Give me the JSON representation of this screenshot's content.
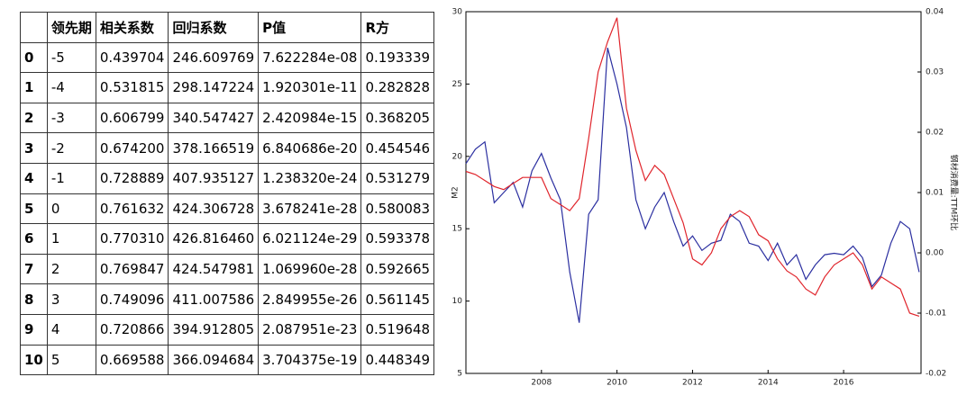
{
  "table": {
    "columns": [
      "",
      "领先期",
      "相关系数",
      "回归系数",
      "P值",
      "R方"
    ],
    "rows": [
      [
        "0",
        "-5",
        "0.439704",
        "246.609769",
        "7.622284e-08",
        "0.193339"
      ],
      [
        "1",
        "-4",
        "0.531815",
        "298.147224",
        "1.920301e-11",
        "0.282828"
      ],
      [
        "2",
        "-3",
        "0.606799",
        "340.547427",
        "2.420984e-15",
        "0.368205"
      ],
      [
        "3",
        "-2",
        "0.674200",
        "378.166519",
        "6.840686e-20",
        "0.454546"
      ],
      [
        "4",
        "-1",
        "0.728889",
        "407.935127",
        "1.238320e-24",
        "0.531279"
      ],
      [
        "5",
        "0",
        "0.761632",
        "424.306728",
        "3.678241e-28",
        "0.580083"
      ],
      [
        "6",
        "1",
        "0.770310",
        "426.816460",
        "6.021124e-29",
        "0.593378"
      ],
      [
        "7",
        "2",
        "0.769847",
        "424.547981",
        "1.069960e-28",
        "0.592665"
      ],
      [
        "8",
        "3",
        "0.749096",
        "411.007586",
        "2.849955e-26",
        "0.561145"
      ],
      [
        "9",
        "4",
        "0.720866",
        "394.912805",
        "2.087951e-23",
        "0.519648"
      ],
      [
        "10",
        "5",
        "0.669588",
        "366.094684",
        "3.704375e-19",
        "0.448349"
      ]
    ]
  },
  "chart_data": {
    "type": "line",
    "ylabel": "M2",
    "y2label": "钢材消费量:TTM环比",
    "x": [
      2006.0,
      2006.25,
      2006.5,
      2006.75,
      2007.0,
      2007.25,
      2007.5,
      2007.75,
      2008.0,
      2008.25,
      2008.5,
      2008.75,
      2009.0,
      2009.25,
      2009.5,
      2009.75,
      2010.0,
      2010.25,
      2010.5,
      2010.75,
      2011.0,
      2011.25,
      2011.5,
      2011.75,
      2012.0,
      2012.25,
      2012.5,
      2012.75,
      2013.0,
      2013.25,
      2013.5,
      2013.75,
      2014.0,
      2014.25,
      2014.5,
      2014.75,
      2015.0,
      2015.25,
      2015.5,
      2015.75,
      2016.0,
      2016.25,
      2016.5,
      2016.75,
      2017.0,
      2017.25,
      2017.5,
      2017.75,
      2018.0
    ],
    "xlim": [
      2006.0,
      2018.05
    ],
    "xticks": [
      2008,
      2010,
      2012,
      2014,
      2016
    ],
    "ylim": [
      5,
      30
    ],
    "yticks": [
      5,
      10,
      15,
      20,
      25,
      30
    ],
    "y2lim": [
      -0.02,
      0.04
    ],
    "y2ticks": [
      {
        "value": -0.02,
        "label": "-0.02"
      },
      {
        "value": -0.01,
        "label": "-0.01"
      },
      {
        "value": 0,
        "label": "0.00"
      },
      {
        "value": 0.01,
        "label": "0.01"
      },
      {
        "value": 0.02,
        "label": "0.02"
      },
      {
        "value": 0.03,
        "label": "0.03"
      },
      {
        "value": 0.04,
        "label": "0.04"
      }
    ],
    "series": [
      {
        "name": "M2",
        "color": "#2b2fa0",
        "values": [
          19.5,
          20.5,
          21,
          16.8,
          17.5,
          18.2,
          16.5,
          19,
          20.2,
          18.5,
          17,
          12,
          8.5,
          16,
          17,
          27.5,
          25,
          22,
          17,
          15,
          16.5,
          17.5,
          15.5,
          13.8,
          14.5,
          13.5,
          14,
          14.2,
          16,
          15.5,
          14,
          13.8,
          12.8,
          14,
          12.5,
          13.2,
          11.5,
          12.5,
          13.2,
          13.3,
          13.2,
          13.8,
          13,
          11,
          11.8,
          14,
          15.5,
          15,
          12
        ]
      },
      {
        "name": "钢材消费量:TTM环比",
        "color": "#e0252c",
        "axis": "y2",
        "values": [
          0.0135,
          0.013,
          0.012,
          0.011,
          0.0105,
          0.0115,
          0.0125,
          0.0125,
          0.0125,
          0.009,
          0.008,
          0.007,
          0.009,
          0.019,
          0.03,
          0.035,
          0.039,
          0.024,
          0.017,
          0.012,
          0.0145,
          0.013,
          0.009,
          0.005,
          -0.001,
          -0.002,
          0,
          0.004,
          0.006,
          0.007,
          0.006,
          0.003,
          0.002,
          -0.001,
          -0.003,
          -0.004,
          -0.006,
          -0.007,
          -0.004,
          -0.002,
          -0.001,
          0,
          -0.002,
          -0.006,
          -0.004,
          -0.005,
          -0.006,
          -0.01,
          -0.0105
        ]
      }
    ]
  }
}
